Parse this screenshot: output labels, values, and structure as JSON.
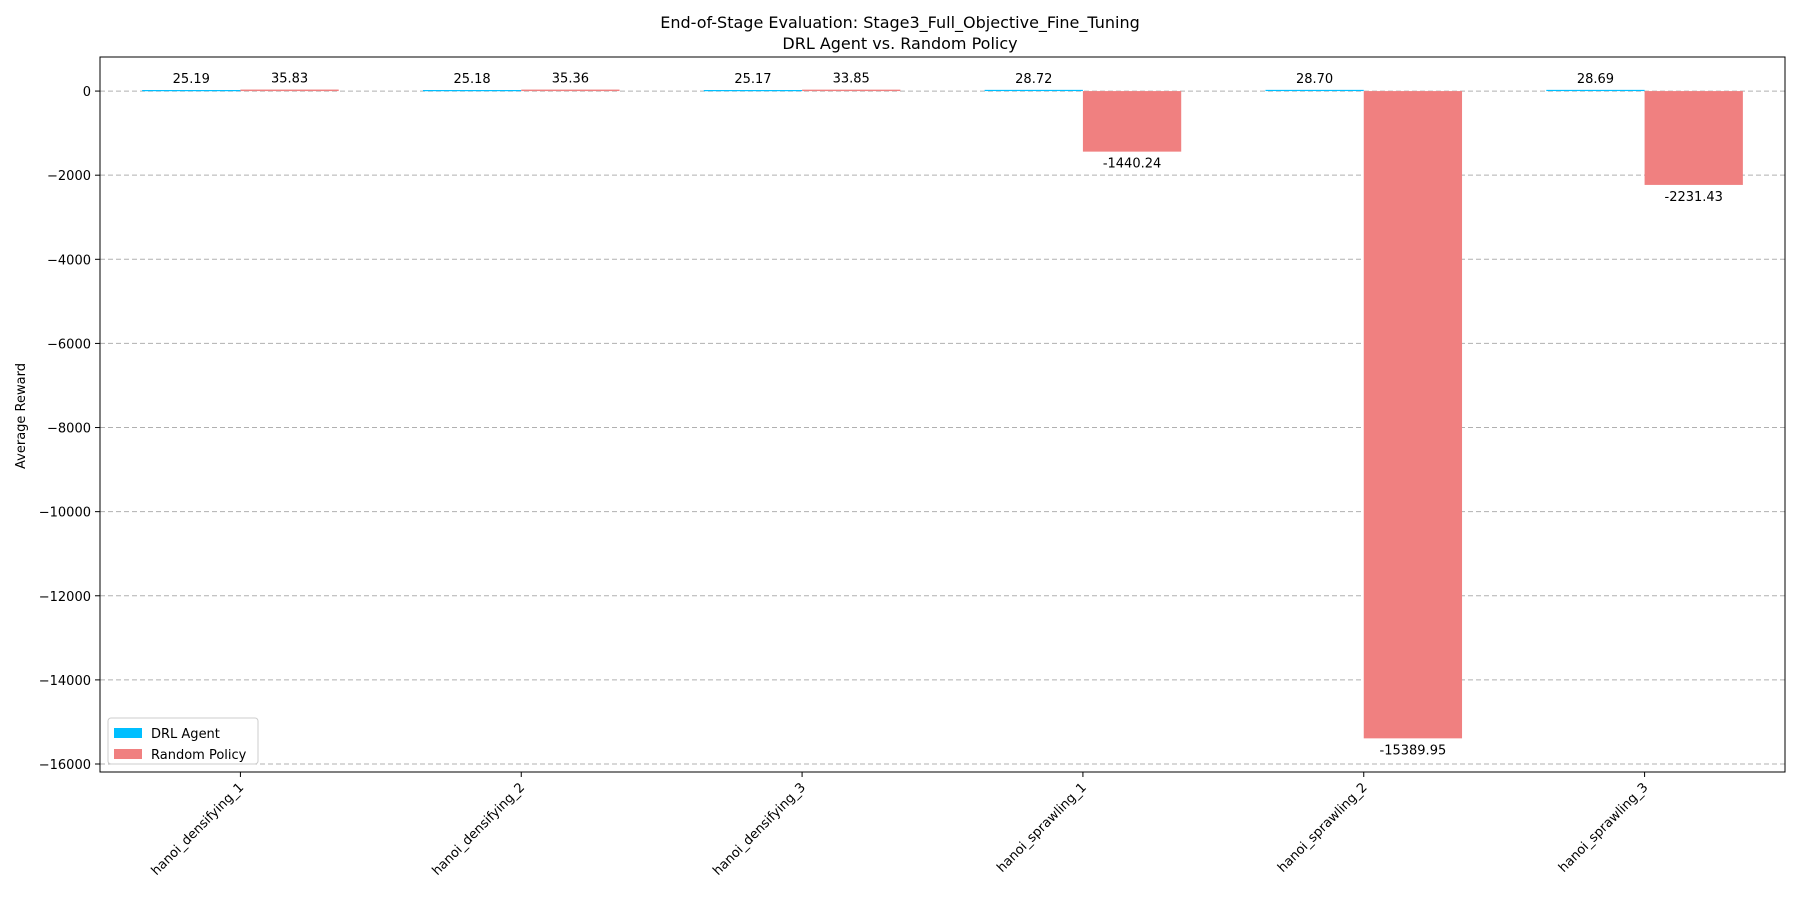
{
  "chart_data": {
    "type": "bar",
    "title": "End-of-Stage Evaluation: Stage3_Full_Objective_Fine_Tuning",
    "subtitle": "DRL Agent vs. Random Policy",
    "xlabel": "",
    "ylabel": "Average Reward",
    "categories": [
      "hanoi_densifying_1",
      "hanoi_densifying_2",
      "hanoi_densifying_3",
      "hanoi_sprawling_1",
      "hanoi_sprawling_2",
      "hanoi_sprawling_3"
    ],
    "series": [
      {
        "name": "DRL Agent",
        "color": "#00bfff",
        "values": [
          25.19,
          25.18,
          25.17,
          28.72,
          28.7,
          28.69
        ],
        "labels": [
          "25.19",
          "25.18",
          "25.17",
          "28.72",
          "28.70",
          "28.69"
        ]
      },
      {
        "name": "Random Policy",
        "color": "#f08080",
        "values": [
          35.83,
          35.36,
          33.85,
          -1440.24,
          -15389.95,
          -2231.43
        ],
        "labels": [
          "35.83",
          "35.36",
          "33.85",
          "-1440.24",
          "-15389.95",
          "-2231.43"
        ]
      }
    ],
    "yticks": [
      0,
      -2000,
      -4000,
      -6000,
      -8000,
      -10000,
      -12000,
      -14000,
      -16000
    ],
    "ytick_labels": [
      "0",
      "−2000",
      "−4000",
      "−6000",
      "−8000",
      "−10000",
      "−12000",
      "−14000",
      "−16000"
    ],
    "ylim": [
      -16190,
      810
    ],
    "grid": "y",
    "legend": "lower-left"
  }
}
